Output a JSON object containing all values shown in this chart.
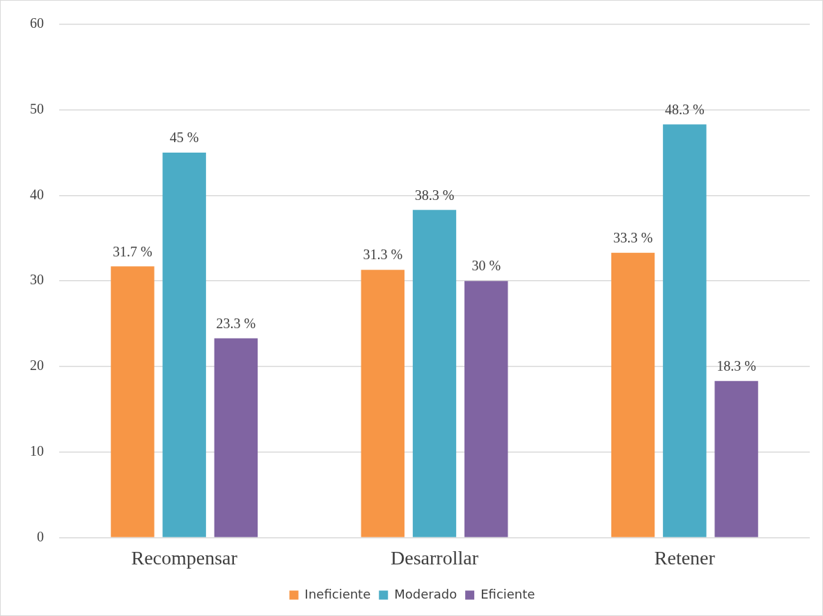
{
  "chart_data": {
    "type": "bar",
    "categories": [
      "Recompensar",
      "Desarrollar",
      "Retener"
    ],
    "series": [
      {
        "name": "Ineficiente",
        "color": "#f79646",
        "values": [
          31.7,
          31.3,
          33.3
        ],
        "value_labels": [
          "31.7 %",
          "31.3 %",
          "33.3 %"
        ]
      },
      {
        "name": "Moderado",
        "color": "#4bacc6",
        "values": [
          45,
          38.3,
          48.3
        ],
        "value_labels": [
          "45 %",
          "38.3 %",
          "48.3 %"
        ]
      },
      {
        "name": "Eficiente",
        "color": "#8064a2",
        "values": [
          23.3,
          30,
          18.3
        ],
        "value_labels": [
          "23.3 %",
          "30 %",
          "18.3 %"
        ]
      }
    ],
    "ylim": [
      0,
      60
    ],
    "yticks": [
      0,
      10,
      20,
      30,
      40,
      50,
      60
    ],
    "grid": "y",
    "legend": "bottom"
  }
}
